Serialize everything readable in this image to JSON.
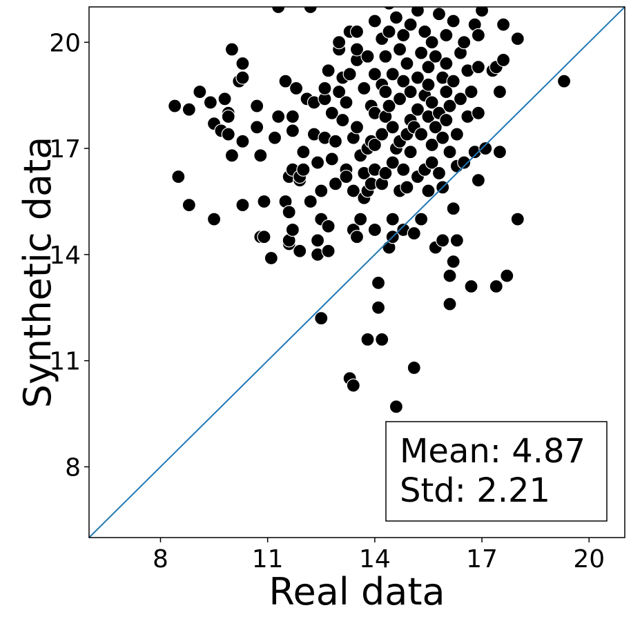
{
  "chart_data": {
    "type": "scatter",
    "xlabel": "Real data",
    "ylabel": "Synthetic data",
    "xlim": [
      6,
      21
    ],
    "ylim": [
      6,
      21
    ],
    "xticks": [
      8,
      11,
      14,
      17,
      20
    ],
    "yticks": [
      8,
      11,
      14,
      17,
      20
    ],
    "xtick_labels": [
      "8",
      "11",
      "14",
      "17",
      "20"
    ],
    "ytick_labels": [
      "8",
      "11",
      "14",
      "17",
      "20"
    ],
    "reference_line": {
      "from": [
        6,
        6
      ],
      "to": [
        21,
        21
      ],
      "color": "#1f77b4"
    },
    "marker_color": "#000000",
    "marker_edge": "#ffffff",
    "stats": {
      "mean_label": "Mean: 4.87",
      "std_label": "Std: 2.21",
      "mean": 4.87,
      "std": 2.21
    },
    "points": [
      [
        8.4,
        18.2
      ],
      [
        8.5,
        16.2
      ],
      [
        8.8,
        18.1
      ],
      [
        8.8,
        15.4
      ],
      [
        9.1,
        18.6
      ],
      [
        9.4,
        18.3
      ],
      [
        9.5,
        17.7
      ],
      [
        9.5,
        15.0
      ],
      [
        9.7,
        17.5
      ],
      [
        9.8,
        18.4
      ],
      [
        9.9,
        17.4
      ],
      [
        9.9,
        18.0
      ],
      [
        9.9,
        17.9
      ],
      [
        10.0,
        19.8
      ],
      [
        10.0,
        16.8
      ],
      [
        10.2,
        18.9
      ],
      [
        10.3,
        19.4
      ],
      [
        10.3,
        19.0
      ],
      [
        10.3,
        17.2
      ],
      [
        10.3,
        15.4
      ],
      [
        10.7,
        18.2
      ],
      [
        10.7,
        17.6
      ],
      [
        10.8,
        16.8
      ],
      [
        10.8,
        14.5
      ],
      [
        10.9,
        14.5
      ],
      [
        10.9,
        15.5
      ],
      [
        11.1,
        13.9
      ],
      [
        11.2,
        17.3
      ],
      [
        11.3,
        17.9
      ],
      [
        11.3,
        21.0
      ],
      [
        11.5,
        18.9
      ],
      [
        11.5,
        15.5
      ],
      [
        11.6,
        15.2
      ],
      [
        11.6,
        14.3
      ],
      [
        11.6,
        14.4
      ],
      [
        11.6,
        16.2
      ],
      [
        11.7,
        16.4
      ],
      [
        11.7,
        17.5
      ],
      [
        11.7,
        17.9
      ],
      [
        11.7,
        14.7
      ],
      [
        11.8,
        18.7
      ],
      [
        11.9,
        14.1
      ],
      [
        11.9,
        16.1
      ],
      [
        11.9,
        16.2
      ],
      [
        12.0,
        16.4
      ],
      [
        12.0,
        16.9
      ],
      [
        12.1,
        18.4
      ],
      [
        12.2,
        21.0
      ],
      [
        12.2,
        15.5
      ],
      [
        12.3,
        18.3
      ],
      [
        12.3,
        17.4
      ],
      [
        12.4,
        16.6
      ],
      [
        12.4,
        14.0
      ],
      [
        12.4,
        14.4
      ],
      [
        12.5,
        12.2
      ],
      [
        12.5,
        15.8
      ],
      [
        12.5,
        15.0
      ],
      [
        12.6,
        18.4
      ],
      [
        12.6,
        17.3
      ],
      [
        12.6,
        18.7
      ],
      [
        12.7,
        19.2
      ],
      [
        12.7,
        14.1
      ],
      [
        12.7,
        14.8
      ],
      [
        12.8,
        18.0
      ],
      [
        12.8,
        16.7
      ],
      [
        12.9,
        17.2
      ],
      [
        12.9,
        16.0
      ],
      [
        13.0,
        19.8
      ],
      [
        13.0,
        20.0
      ],
      [
        13.0,
        18.6
      ],
      [
        13.1,
        17.8
      ],
      [
        13.1,
        19.0
      ],
      [
        13.2,
        16.4
      ],
      [
        13.2,
        16.2
      ],
      [
        13.2,
        18.3
      ],
      [
        13.3,
        19.1
      ],
      [
        13.3,
        20.3
      ],
      [
        13.3,
        10.5
      ],
      [
        13.4,
        14.7
      ],
      [
        13.4,
        15.8
      ],
      [
        13.4,
        17.3
      ],
      [
        13.4,
        10.3
      ],
      [
        13.5,
        19.5
      ],
      [
        13.5,
        19.8
      ],
      [
        13.5,
        14.5
      ],
      [
        13.5,
        20.3
      ],
      [
        13.5,
        17.6
      ],
      [
        13.6,
        16.8
      ],
      [
        13.6,
        15.0
      ],
      [
        13.7,
        15.6
      ],
      [
        13.7,
        16.3
      ],
      [
        13.7,
        18.7
      ],
      [
        13.8,
        19.6
      ],
      [
        13.8,
        17.0
      ],
      [
        13.8,
        15.8
      ],
      [
        13.8,
        11.6
      ],
      [
        13.9,
        18.2
      ],
      [
        13.9,
        16.0
      ],
      [
        13.9,
        17.2
      ],
      [
        14.0,
        20.6
      ],
      [
        14.0,
        18.0
      ],
      [
        14.0,
        17.1
      ],
      [
        14.0,
        19.1
      ],
      [
        14.0,
        14.7
      ],
      [
        14.0,
        16.4
      ],
      [
        14.1,
        12.5
      ],
      [
        14.1,
        13.2
      ],
      [
        14.2,
        20.1
      ],
      [
        14.2,
        11.6
      ],
      [
        14.2,
        18.8
      ],
      [
        14.2,
        16.0
      ],
      [
        14.2,
        17.4
      ],
      [
        14.3,
        17.9
      ],
      [
        14.3,
        19.6
      ],
      [
        14.3,
        16.3
      ],
      [
        14.3,
        18.6
      ],
      [
        14.4,
        14.2
      ],
      [
        14.4,
        21.1
      ],
      [
        14.4,
        20.3
      ],
      [
        14.4,
        18.2
      ],
      [
        14.5,
        17.6
      ],
      [
        14.5,
        15.0
      ],
      [
        14.5,
        16.6
      ],
      [
        14.5,
        14.5
      ],
      [
        14.5,
        19.1
      ],
      [
        14.6,
        9.7
      ],
      [
        14.6,
        17.0
      ],
      [
        14.6,
        20.7
      ],
      [
        14.7,
        18.4
      ],
      [
        14.7,
        17.2
      ],
      [
        14.7,
        15.8
      ],
      [
        14.7,
        19.8
      ],
      [
        14.8,
        16.4
      ],
      [
        14.8,
        14.7
      ],
      [
        14.8,
        18.9
      ],
      [
        14.8,
        20.2
      ],
      [
        14.9,
        17.4
      ],
      [
        14.9,
        15.9
      ],
      [
        14.9,
        19.4
      ],
      [
        15.0,
        17.8
      ],
      [
        15.0,
        18.6
      ],
      [
        15.0,
        16.9
      ],
      [
        15.0,
        20.5
      ],
      [
        15.1,
        14.6
      ],
      [
        15.1,
        10.8
      ],
      [
        15.1,
        17.6
      ],
      [
        15.2,
        19.0
      ],
      [
        15.2,
        18.1
      ],
      [
        15.2,
        16.2
      ],
      [
        15.2,
        20.9
      ],
      [
        15.3,
        15.0
      ],
      [
        15.3,
        17.4
      ],
      [
        15.3,
        19.7
      ],
      [
        15.4,
        18.5
      ],
      [
        15.4,
        16.4
      ],
      [
        15.4,
        20.3
      ],
      [
        15.5,
        17.9
      ],
      [
        15.5,
        18.8
      ],
      [
        15.5,
        15.8
      ],
      [
        15.5,
        19.3
      ],
      [
        15.6,
        17.1
      ],
      [
        15.6,
        20.0
      ],
      [
        15.6,
        16.6
      ],
      [
        15.6,
        18.3
      ],
      [
        15.7,
        14.2
      ],
      [
        15.7,
        19.6
      ],
      [
        15.7,
        17.6
      ],
      [
        15.8,
        18.0
      ],
      [
        15.8,
        16.3
      ],
      [
        15.8,
        20.8
      ],
      [
        15.9,
        19.0
      ],
      [
        15.9,
        17.3
      ],
      [
        15.9,
        15.9
      ],
      [
        15.9,
        14.4
      ],
      [
        16.0,
        18.6
      ],
      [
        16.0,
        20.2
      ],
      [
        16.0,
        17.8
      ],
      [
        16.0,
        19.4
      ],
      [
        16.1,
        16.9
      ],
      [
        16.1,
        18.2
      ],
      [
        16.1,
        13.4
      ],
      [
        16.1,
        12.6
      ],
      [
        16.2,
        13.8
      ],
      [
        16.2,
        15.3
      ],
      [
        16.2,
        18.9
      ],
      [
        16.2,
        20.6
      ],
      [
        16.3,
        17.4
      ],
      [
        16.3,
        16.5
      ],
      [
        16.3,
        14.4
      ],
      [
        16.4,
        19.7
      ],
      [
        16.4,
        18.4
      ],
      [
        16.5,
        16.6
      ],
      [
        16.5,
        20.0
      ],
      [
        16.6,
        17.9
      ],
      [
        16.6,
        19.2
      ],
      [
        16.7,
        18.6
      ],
      [
        16.7,
        13.1
      ],
      [
        16.8,
        20.5
      ],
      [
        16.8,
        16.9
      ],
      [
        16.9,
        19.3
      ],
      [
        16.9,
        18.0
      ],
      [
        16.9,
        16.1
      ],
      [
        16.9,
        20.2
      ],
      [
        17.0,
        20.9
      ],
      [
        17.1,
        17.0
      ],
      [
        17.3,
        19.2
      ],
      [
        17.4,
        19.3
      ],
      [
        17.4,
        13.1
      ],
      [
        17.5,
        16.9
      ],
      [
        17.5,
        18.6
      ],
      [
        17.6,
        19.5
      ],
      [
        17.6,
        20.5
      ],
      [
        17.7,
        13.4
      ],
      [
        18.0,
        15.0
      ],
      [
        18.0,
        20.1
      ],
      [
        19.3,
        18.9
      ]
    ]
  }
}
